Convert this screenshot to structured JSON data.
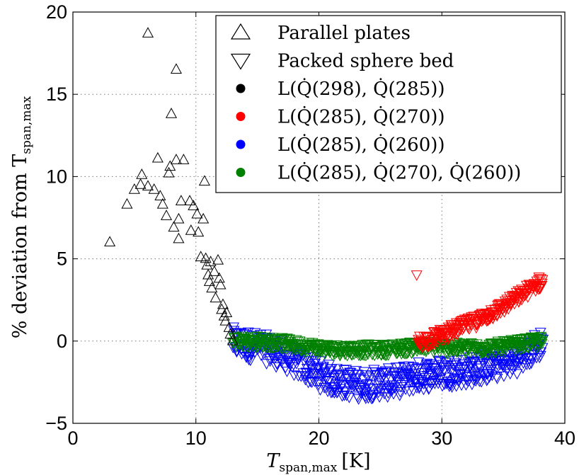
{
  "chart_data": {
    "type": "scatter",
    "xlabel": "T",
    "xlabel_sub": "span,max",
    "xlabel_unit": "[K]",
    "ylabel_prefix": "% deviation from T",
    "ylabel_sub": "span,max",
    "xlim": [
      0,
      40
    ],
    "ylim": [
      -5,
      20
    ],
    "xticks": [
      0,
      10,
      20,
      30,
      40
    ],
    "yticks": [
      -5,
      0,
      5,
      10,
      15,
      20
    ],
    "grid": true,
    "legend_position": "top-right",
    "series": [
      {
        "name": "Parallel plates",
        "marker": "triangle-up",
        "color": "#000000",
        "points": [
          [
            3.0,
            6.0
          ],
          [
            4.4,
            8.3
          ],
          [
            5.0,
            9.2
          ],
          [
            5.5,
            9.5
          ],
          [
            5.6,
            10.1
          ],
          [
            6.1,
            9.4
          ],
          [
            6.1,
            18.7
          ],
          [
            6.6,
            9.2
          ],
          [
            6.9,
            11.1
          ],
          [
            7.1,
            8.8
          ],
          [
            7.3,
            8.3
          ],
          [
            7.6,
            7.6
          ],
          [
            7.8,
            10.2
          ],
          [
            7.9,
            10.6
          ],
          [
            8.0,
            13.8
          ],
          [
            8.2,
            6.9
          ],
          [
            8.4,
            11.0
          ],
          [
            8.4,
            16.5
          ],
          [
            8.6,
            6.2
          ],
          [
            8.6,
            7.4
          ],
          [
            8.8,
            8.5
          ],
          [
            9.0,
            11.0
          ],
          [
            9.5,
            8.5
          ],
          [
            9.6,
            6.7
          ],
          [
            9.8,
            8.2
          ],
          [
            10.1,
            7.7
          ],
          [
            10.2,
            6.6
          ],
          [
            10.4,
            5.1
          ],
          [
            10.6,
            7.4
          ],
          [
            10.7,
            9.7
          ],
          [
            10.8,
            5.0
          ],
          [
            10.9,
            4.6
          ],
          [
            11.0,
            4.0
          ],
          [
            11.1,
            3.6
          ],
          [
            11.2,
            4.8
          ],
          [
            11.3,
            3.2
          ],
          [
            11.5,
            4.2
          ],
          [
            11.6,
            2.6
          ],
          [
            11.8,
            4.9
          ],
          [
            11.9,
            3.8
          ],
          [
            12.0,
            3.4
          ],
          [
            12.1,
            1.9
          ],
          [
            12.2,
            2.2
          ],
          [
            12.3,
            1.5
          ],
          [
            12.4,
            1.2
          ],
          [
            12.5,
            1.7
          ],
          [
            12.7,
            0.8
          ],
          [
            12.8,
            0.4
          ],
          [
            13.0,
            0.0
          ]
        ]
      },
      {
        "name": "Packed sphere bed",
        "marker": "triangle-down"
      },
      {
        "name": "L(Q̇(298), Q̇(285))",
        "marker": "dot",
        "color": "#000000"
      },
      {
        "name": "L(Q̇(285), Q̇(270))",
        "marker": "triangle-down",
        "color": "#ff0000",
        "x_range": [
          28,
          38.2
        ],
        "trend_points": [
          [
            28,
            0.0
          ],
          [
            29,
            0.1
          ],
          [
            30,
            0.4
          ],
          [
            31,
            0.7
          ],
          [
            32,
            1.0
          ],
          [
            33,
            1.3
          ],
          [
            34,
            1.7
          ],
          [
            35,
            2.1
          ],
          [
            36,
            2.6
          ],
          [
            37,
            3.1
          ],
          [
            38.2,
            3.7
          ]
        ],
        "spread": 0.4
      },
      {
        "name": "L(Q̇(285), Q̇(260))",
        "marker": "triangle-down",
        "color": "#0000ff",
        "x_range": [
          13,
          38.2
        ],
        "trend_points": [
          [
            13,
            0.0
          ],
          [
            14,
            -0.2
          ],
          [
            15,
            -0.3
          ],
          [
            16,
            -0.5
          ],
          [
            17,
            -0.8
          ],
          [
            18,
            -1.2
          ],
          [
            19,
            -1.6
          ],
          [
            20,
            -2.0
          ],
          [
            21,
            -2.3
          ],
          [
            22,
            -2.5
          ],
          [
            23,
            -2.6
          ],
          [
            24,
            -2.6
          ],
          [
            25,
            -2.5
          ],
          [
            26,
            -2.5
          ],
          [
            27,
            -2.3
          ],
          [
            28,
            -2.1
          ],
          [
            30,
            -1.9
          ],
          [
            32,
            -1.8
          ],
          [
            34,
            -1.5
          ],
          [
            36,
            -1.1
          ],
          [
            37,
            -0.7
          ],
          [
            38.2,
            0.0
          ]
        ],
        "spread": 0.9
      },
      {
        "name": "L(Q̇(285), Q̇(270), Q̇(260))",
        "marker": "triangle-down",
        "color": "#008000",
        "x_range": [
          13,
          38.2
        ],
        "trend_points": [
          [
            13,
            0.0
          ],
          [
            15,
            0.0
          ],
          [
            17,
            -0.1
          ],
          [
            19,
            -0.3
          ],
          [
            21,
            -0.5
          ],
          [
            23,
            -0.5
          ],
          [
            25,
            -0.5
          ],
          [
            27,
            -0.4
          ],
          [
            29,
            -0.3
          ],
          [
            31,
            -0.4
          ],
          [
            33,
            -0.4
          ],
          [
            35,
            -0.3
          ],
          [
            37,
            -0.1
          ],
          [
            38.2,
            0.0
          ]
        ],
        "spread": 0.35
      }
    ]
  }
}
